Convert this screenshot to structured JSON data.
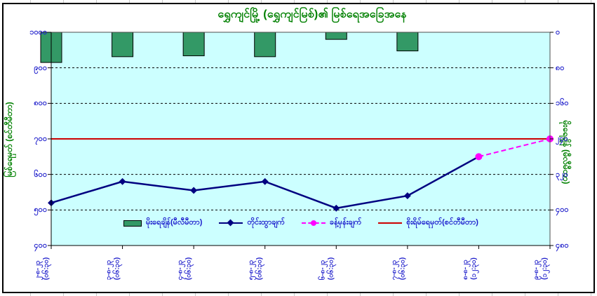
{
  "chart_data": {
    "type": "combo",
    "title": "ရွှေကျင်မြို့ (ရွှေကျင်မြစ်)၏ မြစ်ရေအခြေအနေ",
    "plot_bg": "#CCFFFF",
    "grid": "horizontal dashed, black",
    "legend_position": "bottom inside plot",
    "categories": [
      {
        "date": "၂-၈-၂၃",
        "time": "(၀၆:၃၀)"
      },
      {
        "date": "၃-၈-၂၃",
        "time": "(၀၆:၃၀)"
      },
      {
        "date": "၄-၈-၂၃",
        "time": "(၀၆:၃၀)"
      },
      {
        "date": "၅-၈-၂၃",
        "time": "(၀၆:၃၀)"
      },
      {
        "date": "၆-၈-၂၃",
        "time": "(၀၆:၃၀)"
      },
      {
        "date": "၇-၈-၂၃",
        "time": "(၀၆:၃၀)"
      },
      {
        "date": "၈-၈-၂၃",
        "time": "(၁၂:၃၀)"
      },
      {
        "date": "၉-၈-၂၃",
        "time": "(၁၂:၃၀)"
      }
    ],
    "left_axis": {
      "title": "မြစ်ရေမှတ် (စင်တီမီတာ)",
      "min": 400,
      "max": 1000,
      "tick_values": [
        1000,
        900,
        800,
        700,
        600,
        500,
        400
      ],
      "tick_labels": [
        "၁၀၀၀",
        "၉၀၀",
        "၈၀၀",
        "၇၀၀",
        "၆၀၀",
        "၅၀၀",
        "၄၀၀"
      ],
      "label_color": "#2323CC",
      "title_color": "#008000"
    },
    "right_axis": {
      "title": "မိုးရေချိန် (မီလီမီတာ)",
      "min": 0,
      "max": 480,
      "reversed": true,
      "tick_values": [
        0,
        80,
        160,
        240,
        320,
        400,
        480
      ],
      "tick_labels": [
        "၀",
        "၈၀",
        "၁၆၀",
        "၂၄၀",
        "၃၂၀",
        "၄၀၀",
        "၄၈၀"
      ],
      "label_color": "#2323CC",
      "title_color": "#008000"
    },
    "series": [
      {
        "name": "မိုးရေချိန်(မီလီမီတာ)",
        "type": "bar",
        "axis": "right",
        "color": "#339966",
        "border": "#000000",
        "values": [
          68,
          55,
          53,
          55,
          16,
          42,
          null,
          null
        ]
      },
      {
        "name": "တိုင်းထွာချက်",
        "type": "line",
        "axis": "left",
        "color": "#000080",
        "marker": "diamond",
        "values": [
          520,
          580,
          555,
          580,
          505,
          540,
          650,
          null
        ]
      },
      {
        "name": "ခန့်မှန်းချက်",
        "type": "line",
        "axis": "left",
        "color": "#FF00FF",
        "style": "dashed",
        "marker": "circle",
        "values": [
          null,
          null,
          null,
          null,
          null,
          null,
          650,
          700
        ]
      },
      {
        "name": "စိုးရိမ်ရေမှတ်(စင်တီမီတာ)",
        "type": "hline",
        "axis": "left",
        "color": "#CC0000",
        "value": 700
      }
    ]
  }
}
